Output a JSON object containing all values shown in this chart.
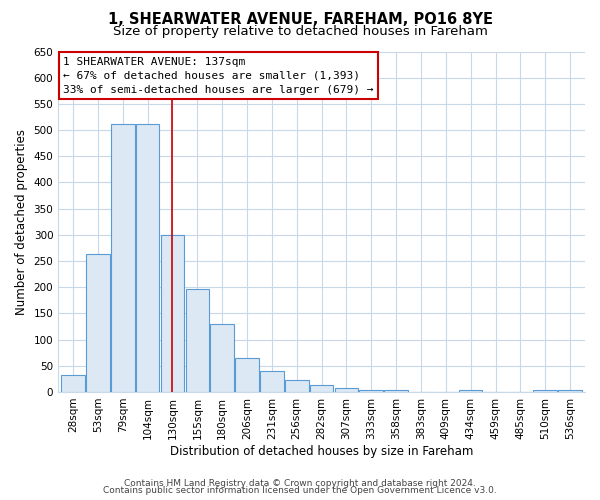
{
  "title": "1, SHEARWATER AVENUE, FAREHAM, PO16 8YE",
  "subtitle": "Size of property relative to detached houses in Fareham",
  "xlabel": "Distribution of detached houses by size in Fareham",
  "ylabel": "Number of detached properties",
  "bar_labels": [
    "28sqm",
    "53sqm",
    "79sqm",
    "104sqm",
    "130sqm",
    "155sqm",
    "180sqm",
    "206sqm",
    "231sqm",
    "256sqm",
    "282sqm",
    "307sqm",
    "333sqm",
    "358sqm",
    "383sqm",
    "409sqm",
    "434sqm",
    "459sqm",
    "485sqm",
    "510sqm",
    "536sqm"
  ],
  "bar_values": [
    32,
    263,
    511,
    511,
    300,
    196,
    130,
    65,
    40,
    23,
    14,
    8,
    4,
    3,
    0,
    0,
    4,
    0,
    0,
    4,
    4
  ],
  "bar_color": "#dce9f5",
  "bar_edge_color": "#5b9bd5",
  "vline_x": 4,
  "vline_color": "#cc0000",
  "ylim": [
    0,
    650
  ],
  "yticks": [
    0,
    50,
    100,
    150,
    200,
    250,
    300,
    350,
    400,
    450,
    500,
    550,
    600,
    650
  ],
  "annotation_title": "1 SHEARWATER AVENUE: 137sqm",
  "annotation_line1": "← 67% of detached houses are smaller (1,393)",
  "annotation_line2": "33% of semi-detached houses are larger (679) →",
  "annotation_box_color": "#ffffff",
  "annotation_box_edge": "#cc0000",
  "footer1": "Contains HM Land Registry data © Crown copyright and database right 2024.",
  "footer2": "Contains public sector information licensed under the Open Government Licence v3.0.",
  "bg_color": "#ffffff",
  "plot_bg_color": "#ffffff",
  "grid_color": "#c8d8e8",
  "title_fontsize": 10.5,
  "subtitle_fontsize": 9.5,
  "annotation_fontsize": 8.0,
  "axis_label_fontsize": 8.5,
  "tick_fontsize": 7.5,
  "footer_fontsize": 6.5
}
